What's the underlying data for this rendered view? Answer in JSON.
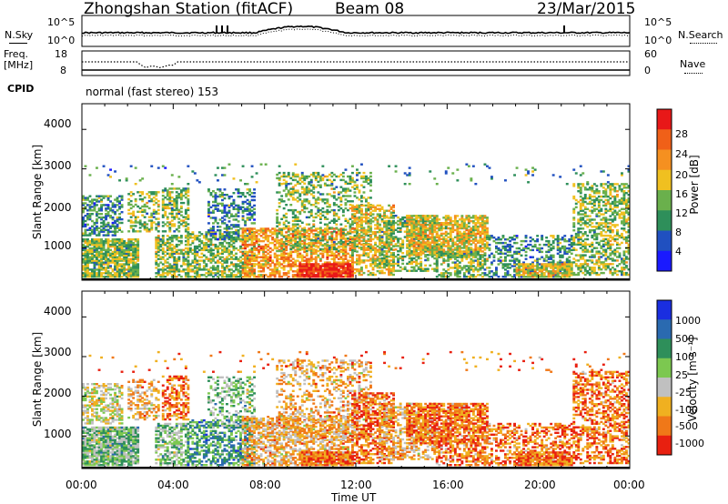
{
  "header": {
    "station": "Zhongshan Station (fitACF)",
    "beam": "Beam 08",
    "date": "23/Mar/2015"
  },
  "status_rows": {
    "nsky_label": "N.Sky",
    "nsky_ticks": [
      "10^5",
      "10^0"
    ],
    "nsearch_label": "N.Search",
    "nsearch_ticks": [
      "10^5",
      "10^0"
    ],
    "freq_label_1": "Freq.",
    "freq_label_2": "[MHz]",
    "freq_ticks": [
      "18",
      "8"
    ],
    "nave_label": "Nave",
    "nave_ticks": [
      "60",
      "0"
    ],
    "cpid_label": "CPID",
    "cpid_text": "normal (fast stereo) 153"
  },
  "chart_data": [
    {
      "type": "heatmap",
      "panel": "power",
      "ylabel": "Slant Range [km]",
      "yticks": [
        "1000",
        "2000",
        "3000",
        "4000"
      ],
      "ylim": [
        180,
        4650
      ],
      "colorbar_label": "Power [dB]",
      "colorbar_ticks": [
        "4",
        "8",
        "12",
        "16",
        "20",
        "24",
        "28"
      ],
      "colorbar_range": [
        0,
        30
      ],
      "colors": [
        "#1a1aff",
        "#2050c0",
        "#2e8f5a",
        "#6ab04c",
        "#f0c020",
        "#f59020",
        "#f06018",
        "#e81818"
      ]
    },
    {
      "type": "heatmap",
      "panel": "velocity",
      "ylabel": "Slant Range [km]",
      "yticks": [
        "1000",
        "2000",
        "3000",
        "4000"
      ],
      "ylim": [
        180,
        4650
      ],
      "colorbar_label": "Velocity [m s⁻¹]",
      "colorbar_ticks": [
        "1000",
        "500",
        "100",
        "25",
        "-25",
        "-100",
        "-500",
        "-1000"
      ],
      "colors": [
        "#1a2ee0",
        "#2a6ab0",
        "#2e8f5a",
        "#7cc850",
        "#c0c0c0",
        "#f0b020",
        "#f07818",
        "#e82010"
      ]
    }
  ],
  "x_axis": {
    "ticks": [
      "00:00",
      "04:00",
      "08:00",
      "12:00",
      "16:00",
      "20:00",
      "00:00"
    ],
    "label": "Time UT"
  }
}
